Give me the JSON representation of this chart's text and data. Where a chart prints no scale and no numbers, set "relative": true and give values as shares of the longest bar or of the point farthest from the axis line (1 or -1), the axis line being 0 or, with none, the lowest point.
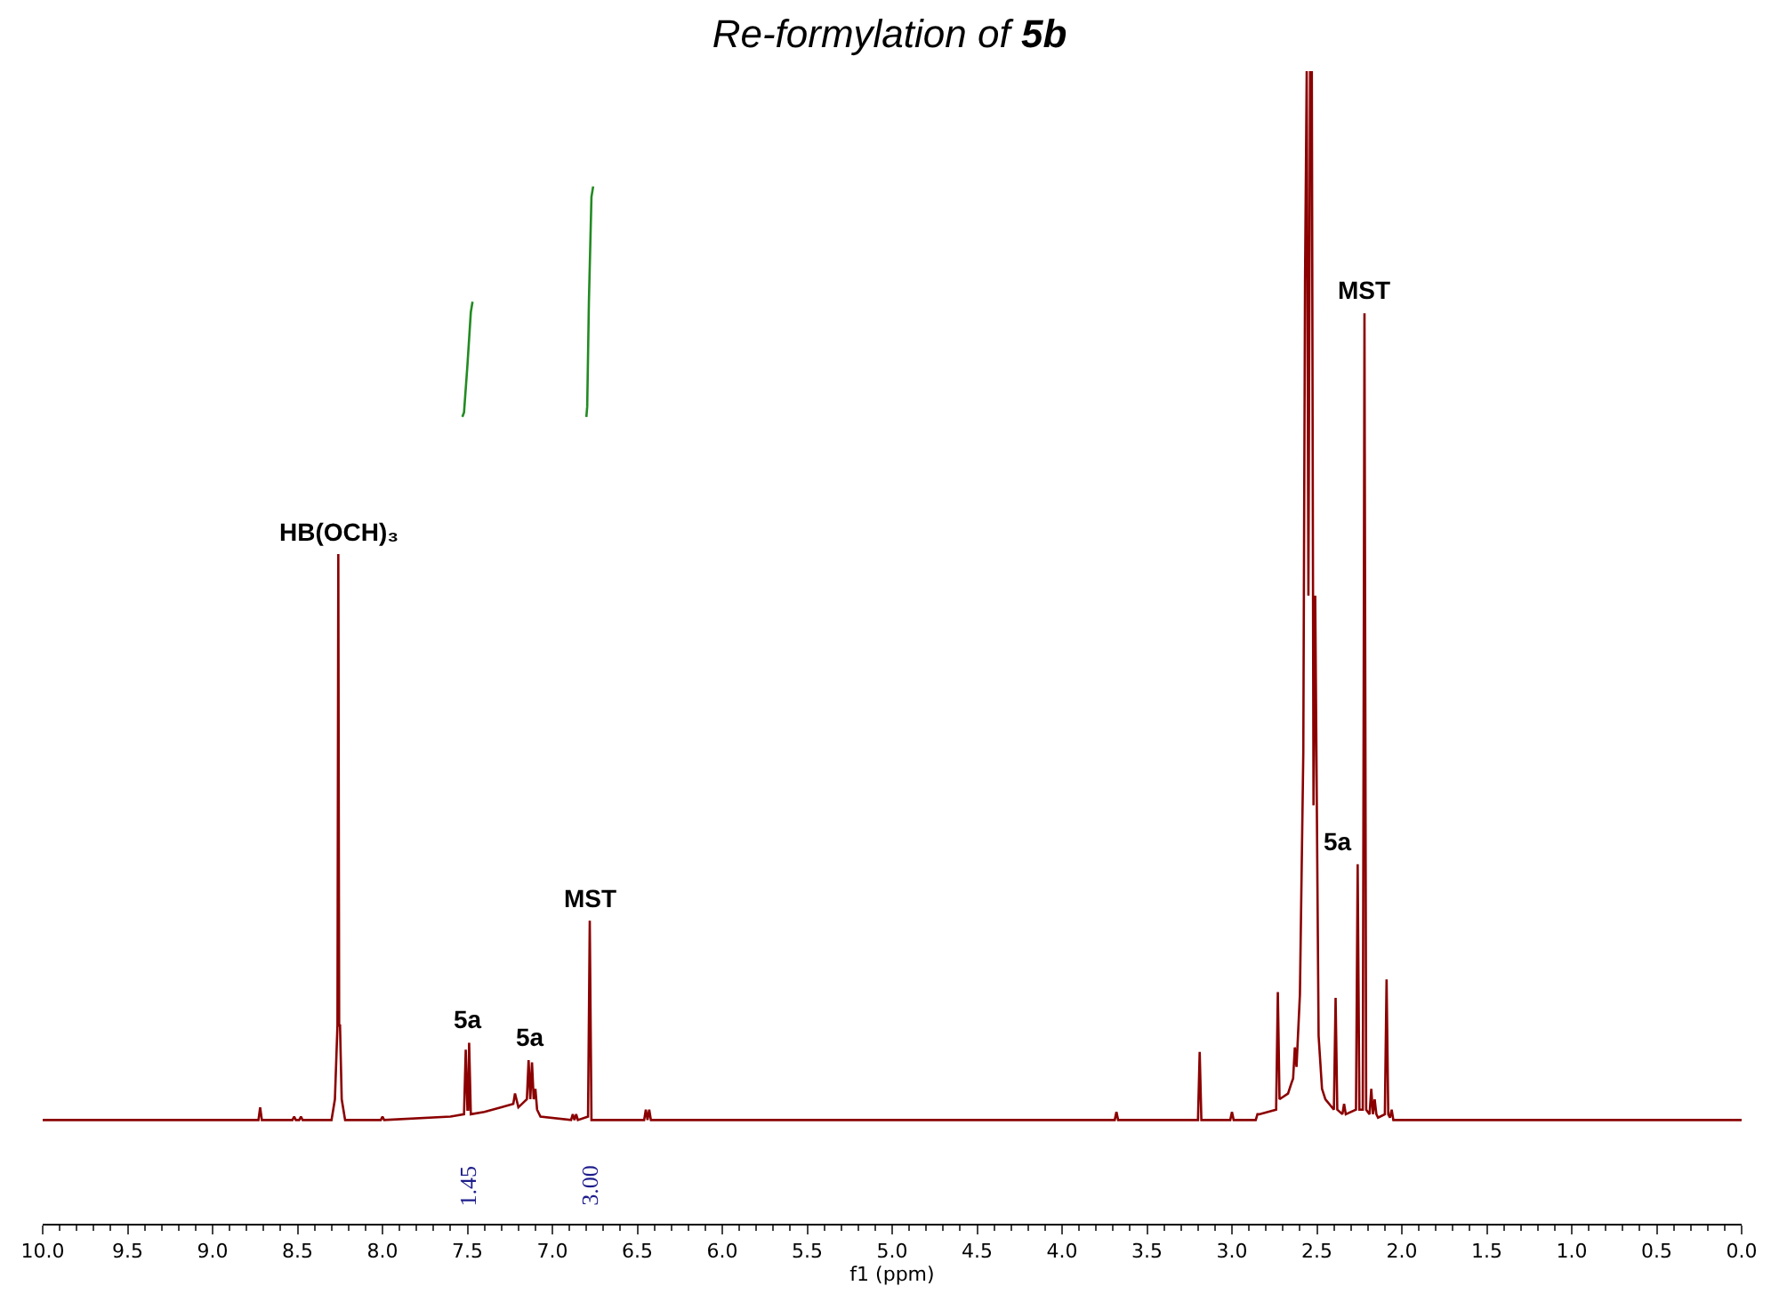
{
  "chart_data": {
    "type": "line",
    "title": "Re-formylation of 5b",
    "xlabel": "f1 (ppm)",
    "relative": true,
    "tick_labels": "x",
    "marker": "none",
    "line_style": "solid",
    "xlim": [
      10.0,
      0.0
    ],
    "xticks": [
      {
        "value": 10.0,
        "label": "10.0"
      },
      {
        "value": 9.5,
        "label": "9.5"
      },
      {
        "value": 9.0,
        "label": "9.0"
      },
      {
        "value": 8.5,
        "label": "8.5"
      },
      {
        "value": 8.0,
        "label": "8.0"
      },
      {
        "value": 7.5,
        "label": "7.5"
      },
      {
        "value": 7.0,
        "label": "7.0"
      },
      {
        "value": 6.5,
        "label": "6.5"
      },
      {
        "value": 6.0,
        "label": "6.0"
      },
      {
        "value": 5.5,
        "label": "5.5"
      },
      {
        "value": 5.0,
        "label": "5.0"
      },
      {
        "value": 4.5,
        "label": "4.5"
      },
      {
        "value": 4.0,
        "label": "4.0"
      },
      {
        "value": 3.5,
        "label": "3.5"
      },
      {
        "value": 3.0,
        "label": "3.0"
      },
      {
        "value": 2.5,
        "label": "2.5"
      },
      {
        "value": 2.0,
        "label": "2.0"
      },
      {
        "value": 1.5,
        "label": "1.5"
      },
      {
        "value": 1.0,
        "label": "1.0"
      },
      {
        "value": 0.5,
        "label": "0.5"
      },
      {
        "value": 0.0,
        "label": "0.0"
      }
    ],
    "series": [
      {
        "color": "#8b0000",
        "x": [
          10.0,
          8.73,
          8.72,
          8.71,
          8.53,
          8.52,
          8.51,
          8.49,
          8.48,
          8.47,
          8.3,
          8.28,
          8.265,
          8.26,
          8.255,
          8.25,
          8.24,
          8.22,
          8.01,
          8.0,
          7.99,
          7.6,
          7.52,
          7.51,
          7.5,
          7.495,
          7.49,
          7.48,
          7.4,
          7.3,
          7.23,
          7.22,
          7.2,
          7.15,
          7.14,
          7.13,
          7.12,
          7.11,
          7.1,
          7.09,
          7.07,
          6.89,
          6.88,
          6.87,
          6.86,
          6.85,
          6.79,
          6.78,
          6.77,
          6.46,
          6.45,
          6.44,
          6.43,
          6.42,
          3.69,
          3.68,
          3.67,
          3.2,
          3.19,
          3.18,
          3.01,
          3.0,
          2.99,
          2.86,
          2.85,
          2.84,
          2.74,
          2.73,
          2.72,
          2.67,
          2.65,
          2.64,
          2.63,
          2.62,
          2.6,
          2.58,
          2.57,
          2.56,
          2.55,
          2.54,
          2.53,
          2.52,
          2.51,
          2.49,
          2.47,
          2.45,
          2.4,
          2.39,
          2.38,
          2.35,
          2.34,
          2.33,
          2.27,
          2.26,
          2.25,
          2.23,
          2.22,
          2.21,
          2.19,
          2.18,
          2.17,
          2.16,
          2.15,
          2.14,
          2.1,
          2.09,
          2.08,
          2.07,
          2.06,
          2.05,
          0.0
        ],
        "values": [
          0.09,
          0.09,
          0.101,
          0.09,
          0.09,
          0.093,
          0.09,
          0.09,
          0.093,
          0.09,
          0.09,
          0.108,
          0.172,
          0.581,
          0.172,
          0.172,
          0.108,
          0.09,
          0.09,
          0.093,
          0.09,
          0.093,
          0.095,
          0.151,
          0.099,
          0.099,
          0.157,
          0.095,
          0.097,
          0.101,
          0.104,
          0.113,
          0.101,
          0.108,
          0.142,
          0.108,
          0.14,
          0.108,
          0.117,
          0.099,
          0.093,
          0.09,
          0.095,
          0.09,
          0.095,
          0.09,
          0.093,
          0.263,
          0.09,
          0.09,
          0.099,
          0.09,
          0.099,
          0.09,
          0.09,
          0.097,
          0.09,
          0.09,
          0.149,
          0.09,
          0.09,
          0.097,
          0.09,
          0.09,
          0.095,
          0.095,
          0.099,
          0.201,
          0.108,
          0.113,
          0.122,
          0.126,
          0.153,
          0.136,
          0.199,
          0.409,
          0.818,
          1.0,
          0.545,
          1.0,
          1.0,
          0.363,
          0.545,
          0.163,
          0.117,
          0.108,
          0.099,
          0.196,
          0.099,
          0.095,
          0.104,
          0.095,
          0.099,
          0.312,
          0.099,
          0.099,
          0.79,
          0.099,
          0.095,
          0.117,
          0.095,
          0.108,
          0.095,
          0.092,
          0.095,
          0.212,
          0.095,
          0.092,
          0.099,
          0.09,
          0.09
        ]
      },
      {
        "color": "#228b22",
        "x": [
          7.53,
          7.52,
          7.5,
          7.48,
          7.47
        ],
        "values": [
          0.7,
          0.704,
          0.745,
          0.791,
          0.8
        ]
      },
      {
        "color": "#228b22",
        "x": [
          6.8,
          6.795,
          6.785,
          6.77,
          6.76
        ],
        "values": [
          0.7,
          0.709,
          0.8,
          0.891,
          0.9
        ]
      }
    ],
    "annotations": [
      {
        "text": "HB(OCH)₃",
        "x": 8.26,
        "y": 0.581
      },
      {
        "text": "5a",
        "x": 7.5,
        "y": 0.157
      },
      {
        "text": "5a",
        "x": 7.13,
        "y": 0.142
      },
      {
        "text": "MST",
        "x": 6.78,
        "y": 0.263
      },
      {
        "text": "5a",
        "x": 2.26,
        "y": 0.312
      },
      {
        "text": "MST",
        "x": 2.22,
        "y": 0.79
      },
      "1.45",
      "3.00"
    ]
  }
}
